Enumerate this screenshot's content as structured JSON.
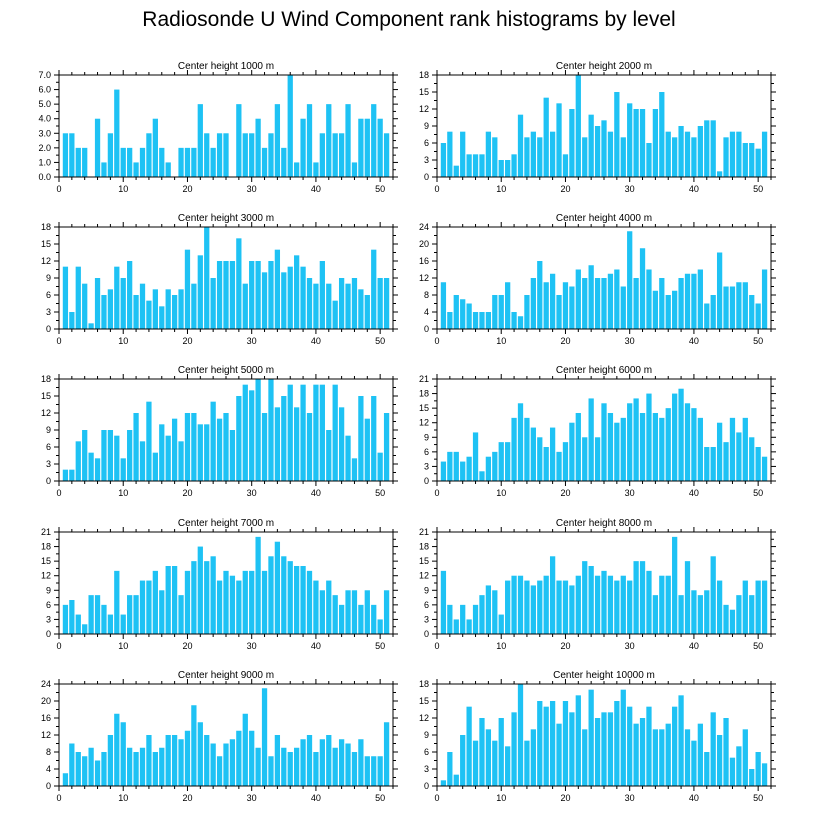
{
  "figure": {
    "title": "Radiosonde U Wind Component rank histograms by level"
  },
  "colors": {
    "bar": "#1ec2f4",
    "axis": "#000000",
    "background": "#ffffff"
  },
  "chart_data": [
    {
      "type": "bar",
      "title": "Center height 1000 m",
      "xlim": [
        0,
        52
      ],
      "ylim": [
        0,
        7
      ],
      "xticks": [
        "0",
        "10",
        "20",
        "30",
        "40",
        "50"
      ],
      "yticks": [
        "0.0",
        "1.0",
        "2.0",
        "3.0",
        "4.0",
        "5.0",
        "6.0",
        "7.0"
      ],
      "x": [
        1,
        2,
        3,
        4,
        5,
        6,
        7,
        8,
        9,
        10,
        11,
        12,
        13,
        14,
        15,
        16,
        17,
        18,
        19,
        20,
        21,
        22,
        23,
        24,
        25,
        26,
        27,
        28,
        29,
        30,
        31,
        32,
        33,
        34,
        35,
        36,
        37,
        38,
        39,
        40,
        41,
        42,
        43,
        44,
        45,
        46,
        47,
        48,
        49,
        50,
        51
      ],
      "values": [
        3,
        3,
        2,
        2,
        0,
        4,
        1,
        3,
        6,
        2,
        2,
        1,
        2,
        3,
        4,
        2,
        1,
        0,
        2,
        2,
        2,
        5,
        3,
        2,
        3,
        3,
        0,
        5,
        3,
        3,
        4,
        2,
        3,
        5,
        2,
        7,
        1,
        4,
        5,
        1,
        3,
        5,
        3,
        3,
        5,
        1,
        4,
        4,
        5,
        4,
        3
      ]
    },
    {
      "type": "bar",
      "title": "Center height 2000 m",
      "xlim": [
        0,
        52
      ],
      "ylim": [
        0,
        18
      ],
      "xticks": [
        "0",
        "10",
        "20",
        "30",
        "40",
        "50"
      ],
      "yticks": [
        "0",
        "3",
        "6",
        "9",
        "12",
        "15",
        "18"
      ],
      "x": [
        1,
        2,
        3,
        4,
        5,
        6,
        7,
        8,
        9,
        10,
        11,
        12,
        13,
        14,
        15,
        16,
        17,
        18,
        19,
        20,
        21,
        22,
        23,
        24,
        25,
        26,
        27,
        28,
        29,
        30,
        31,
        32,
        33,
        34,
        35,
        36,
        37,
        38,
        39,
        40,
        41,
        42,
        43,
        44,
        45,
        46,
        47,
        48,
        49,
        50,
        51
      ],
      "values": [
        6,
        8,
        2,
        8,
        4,
        4,
        4,
        8,
        7,
        3,
        3,
        4,
        11,
        7,
        8,
        7,
        14,
        8,
        13,
        4,
        12,
        18,
        7,
        11,
        9,
        10,
        8,
        15,
        7,
        13,
        12,
        12,
        6,
        12,
        15,
        8,
        7,
        9,
        8,
        7,
        9,
        10,
        10,
        1,
        7,
        8,
        8,
        6,
        6,
        5,
        8
      ]
    },
    {
      "type": "bar",
      "title": "Center height 3000 m",
      "xlim": [
        0,
        52
      ],
      "ylim": [
        0,
        18
      ],
      "xticks": [
        "0",
        "10",
        "20",
        "30",
        "40",
        "50"
      ],
      "yticks": [
        "0",
        "3",
        "6",
        "9",
        "12",
        "15",
        "18"
      ],
      "x": [
        1,
        2,
        3,
        4,
        5,
        6,
        7,
        8,
        9,
        10,
        11,
        12,
        13,
        14,
        15,
        16,
        17,
        18,
        19,
        20,
        21,
        22,
        23,
        24,
        25,
        26,
        27,
        28,
        29,
        30,
        31,
        32,
        33,
        34,
        35,
        36,
        37,
        38,
        39,
        40,
        41,
        42,
        43,
        44,
        45,
        46,
        47,
        48,
        49,
        50,
        51
      ],
      "values": [
        11,
        3,
        11,
        8,
        1,
        9,
        6,
        7,
        11,
        9,
        12,
        6,
        8,
        5,
        7,
        4,
        7,
        6,
        7,
        14,
        8,
        13,
        18,
        9,
        12,
        12,
        12,
        16,
        8,
        12,
        12,
        10,
        12,
        14,
        10,
        11,
        13,
        11,
        9,
        8,
        12,
        8,
        5,
        9,
        8,
        9,
        7,
        6,
        14,
        9,
        9
      ]
    },
    {
      "type": "bar",
      "title": "Center height 4000 m",
      "xlim": [
        0,
        52
      ],
      "ylim": [
        0,
        24
      ],
      "xticks": [
        "0",
        "10",
        "20",
        "30",
        "40",
        "50"
      ],
      "yticks": [
        "0",
        "4",
        "8",
        "12",
        "16",
        "20",
        "24"
      ],
      "x": [
        1,
        2,
        3,
        4,
        5,
        6,
        7,
        8,
        9,
        10,
        11,
        12,
        13,
        14,
        15,
        16,
        17,
        18,
        19,
        20,
        21,
        22,
        23,
        24,
        25,
        26,
        27,
        28,
        29,
        30,
        31,
        32,
        33,
        34,
        35,
        36,
        37,
        38,
        39,
        40,
        41,
        42,
        43,
        44,
        45,
        46,
        47,
        48,
        49,
        50,
        51
      ],
      "values": [
        11,
        4,
        8,
        7,
        6,
        4,
        4,
        4,
        8,
        8,
        11,
        4,
        3,
        8,
        12,
        16,
        11,
        13,
        8,
        11,
        10,
        14,
        12,
        15,
        12,
        12,
        13,
        14,
        10,
        23,
        12,
        19,
        14,
        9,
        12,
        8,
        9,
        12,
        13,
        13,
        14,
        6,
        8,
        18,
        10,
        10,
        11,
        11,
        8,
        6,
        14
      ]
    },
    {
      "type": "bar",
      "title": "Center height 5000 m",
      "xlim": [
        0,
        52
      ],
      "ylim": [
        0,
        18
      ],
      "xticks": [
        "0",
        "10",
        "20",
        "30",
        "40",
        "50"
      ],
      "yticks": [
        "0",
        "3",
        "6",
        "9",
        "12",
        "15",
        "18"
      ],
      "x": [
        1,
        2,
        3,
        4,
        5,
        6,
        7,
        8,
        9,
        10,
        11,
        12,
        13,
        14,
        15,
        16,
        17,
        18,
        19,
        20,
        21,
        22,
        23,
        24,
        25,
        26,
        27,
        28,
        29,
        30,
        31,
        32,
        33,
        34,
        35,
        36,
        37,
        38,
        39,
        40,
        41,
        42,
        43,
        44,
        45,
        46,
        47,
        48,
        49,
        50,
        51
      ],
      "values": [
        2,
        2,
        7,
        9,
        5,
        4,
        9,
        9,
        8,
        4,
        9,
        12,
        7,
        14,
        5,
        10,
        8,
        11,
        7,
        12,
        12,
        10,
        10,
        14,
        11,
        12,
        9,
        15,
        17,
        16,
        18,
        12,
        18,
        13,
        15,
        17,
        13,
        17,
        12,
        17,
        17,
        9,
        17,
        13,
        8,
        4,
        15,
        11,
        15,
        5,
        12
      ]
    },
    {
      "type": "bar",
      "title": "Center height 6000 m",
      "xlim": [
        0,
        52
      ],
      "ylim": [
        0,
        21
      ],
      "xticks": [
        "0",
        "10",
        "20",
        "30",
        "40",
        "50"
      ],
      "yticks": [
        "0",
        "3",
        "6",
        "9",
        "12",
        "15",
        "18",
        "21"
      ],
      "x": [
        1,
        2,
        3,
        4,
        5,
        6,
        7,
        8,
        9,
        10,
        11,
        12,
        13,
        14,
        15,
        16,
        17,
        18,
        19,
        20,
        21,
        22,
        23,
        24,
        25,
        26,
        27,
        28,
        29,
        30,
        31,
        32,
        33,
        34,
        35,
        36,
        37,
        38,
        39,
        40,
        41,
        42,
        43,
        44,
        45,
        46,
        47,
        48,
        49,
        50,
        51
      ],
      "values": [
        4,
        6,
        6,
        4,
        5,
        10,
        2,
        5,
        6,
        8,
        8,
        13,
        16,
        13,
        11,
        9,
        7,
        11,
        6,
        8,
        12,
        14,
        9,
        17,
        9,
        16,
        14,
        12,
        13,
        16,
        17,
        14,
        18,
        14,
        13,
        15,
        18,
        19,
        16,
        15,
        13,
        7,
        7,
        12,
        8,
        13,
        10,
        13,
        9,
        7,
        5
      ]
    },
    {
      "type": "bar",
      "title": "Center height 7000 m",
      "xlim": [
        0,
        52
      ],
      "ylim": [
        0,
        21
      ],
      "xticks": [
        "0",
        "10",
        "20",
        "30",
        "40",
        "50"
      ],
      "yticks": [
        "0",
        "3",
        "6",
        "9",
        "12",
        "15",
        "18",
        "21"
      ],
      "x": [
        1,
        2,
        3,
        4,
        5,
        6,
        7,
        8,
        9,
        10,
        11,
        12,
        13,
        14,
        15,
        16,
        17,
        18,
        19,
        20,
        21,
        22,
        23,
        24,
        25,
        26,
        27,
        28,
        29,
        30,
        31,
        32,
        33,
        34,
        35,
        36,
        37,
        38,
        39,
        40,
        41,
        42,
        43,
        44,
        45,
        46,
        47,
        48,
        49,
        50,
        51
      ],
      "values": [
        6,
        7,
        4,
        2,
        8,
        8,
        6,
        4,
        13,
        4,
        8,
        8,
        11,
        11,
        13,
        9,
        14,
        14,
        8,
        13,
        15,
        18,
        15,
        16,
        11,
        13,
        12,
        11,
        13,
        13,
        20,
        13,
        16,
        19,
        16,
        15,
        14,
        14,
        13,
        11,
        9,
        11,
        8,
        6,
        9,
        9,
        6,
        9,
        6,
        3,
        9
      ]
    },
    {
      "type": "bar",
      "title": "Center height 8000 m",
      "xlim": [
        0,
        52
      ],
      "ylim": [
        0,
        21
      ],
      "xticks": [
        "0",
        "10",
        "20",
        "30",
        "40",
        "50"
      ],
      "yticks": [
        "0",
        "3",
        "6",
        "9",
        "12",
        "15",
        "18",
        "21"
      ],
      "x": [
        1,
        2,
        3,
        4,
        5,
        6,
        7,
        8,
        9,
        10,
        11,
        12,
        13,
        14,
        15,
        16,
        17,
        18,
        19,
        20,
        21,
        22,
        23,
        24,
        25,
        26,
        27,
        28,
        29,
        30,
        31,
        32,
        33,
        34,
        35,
        36,
        37,
        38,
        39,
        40,
        41,
        42,
        43,
        44,
        45,
        46,
        47,
        48,
        49,
        50,
        51
      ],
      "values": [
        13,
        6,
        3,
        6,
        3,
        6,
        8,
        10,
        9,
        4,
        11,
        12,
        12,
        11,
        10,
        11,
        12,
        16,
        11,
        11,
        10,
        12,
        15,
        14,
        12,
        13,
        12,
        11,
        12,
        11,
        15,
        15,
        13,
        8,
        12,
        12,
        20,
        8,
        15,
        9,
        8,
        9,
        16,
        11,
        6,
        5,
        8,
        11,
        8,
        11,
        11
      ]
    },
    {
      "type": "bar",
      "title": "Center height 9000 m",
      "xlim": [
        0,
        52
      ],
      "ylim": [
        0,
        24
      ],
      "xticks": [
        "0",
        "10",
        "20",
        "30",
        "40",
        "50"
      ],
      "yticks": [
        "0",
        "4",
        "8",
        "12",
        "16",
        "20",
        "24"
      ],
      "x": [
        1,
        2,
        3,
        4,
        5,
        6,
        7,
        8,
        9,
        10,
        11,
        12,
        13,
        14,
        15,
        16,
        17,
        18,
        19,
        20,
        21,
        22,
        23,
        24,
        25,
        26,
        27,
        28,
        29,
        30,
        31,
        32,
        33,
        34,
        35,
        36,
        37,
        38,
        39,
        40,
        41,
        42,
        43,
        44,
        45,
        46,
        47,
        48,
        49,
        50,
        51
      ],
      "values": [
        3,
        10,
        8,
        7,
        9,
        6,
        8,
        12,
        17,
        15,
        9,
        8,
        9,
        12,
        8,
        9,
        12,
        12,
        11,
        13,
        19,
        15,
        12,
        10,
        7,
        10,
        11,
        13,
        17,
        13,
        9,
        23,
        7,
        12,
        9,
        8,
        9,
        11,
        12,
        8,
        11,
        12,
        9,
        11,
        10,
        8,
        11,
        7,
        7,
        7,
        15
      ]
    },
    {
      "type": "bar",
      "title": "Center height 10000 m",
      "xlim": [
        0,
        52
      ],
      "ylim": [
        0,
        18
      ],
      "xticks": [
        "0",
        "10",
        "20",
        "30",
        "40",
        "50"
      ],
      "yticks": [
        "0",
        "3",
        "6",
        "9",
        "12",
        "15",
        "18"
      ],
      "x": [
        1,
        2,
        3,
        4,
        5,
        6,
        7,
        8,
        9,
        10,
        11,
        12,
        13,
        14,
        15,
        16,
        17,
        18,
        19,
        20,
        21,
        22,
        23,
        24,
        25,
        26,
        27,
        28,
        29,
        30,
        31,
        32,
        33,
        34,
        35,
        36,
        37,
        38,
        39,
        40,
        41,
        42,
        43,
        44,
        45,
        46,
        47,
        48,
        49,
        50,
        51
      ],
      "values": [
        1,
        6,
        2,
        9,
        14,
        8,
        12,
        10,
        8,
        12,
        7,
        13,
        18,
        8,
        10,
        15,
        14,
        15,
        11,
        15,
        13,
        16,
        10,
        17,
        12,
        13,
        13,
        15,
        17,
        14,
        11,
        12,
        14,
        10,
        10,
        11,
        14,
        16,
        10,
        8,
        11,
        6,
        13,
        9,
        12,
        5,
        7,
        10,
        3,
        6,
        4
      ]
    }
  ]
}
